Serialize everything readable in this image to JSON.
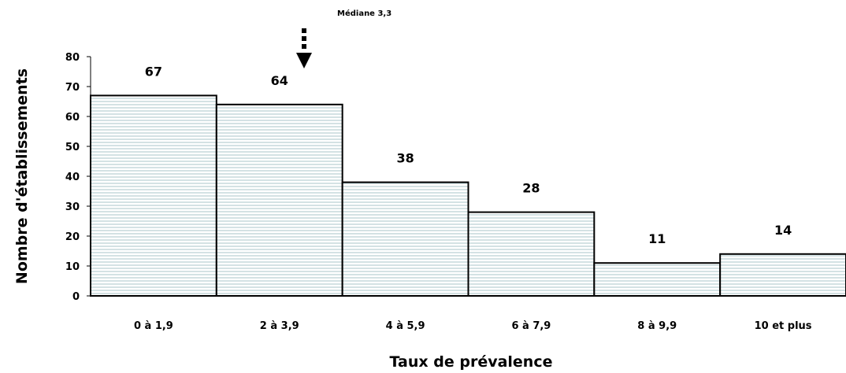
{
  "chart_data": {
    "type": "bar",
    "categories": [
      "0 à 1,9",
      "2 à 3,9",
      "4 à 5,9",
      "6 à 7,9",
      "8 à 9,9",
      "10 et plus"
    ],
    "values": [
      67,
      64,
      38,
      28,
      11,
      14
    ],
    "xlabel": "Taux de prévalence",
    "ylabel": "Nombre d'établissements",
    "ylim": [
      0,
      80
    ],
    "yticks": [
      0,
      10,
      20,
      30,
      40,
      50,
      60,
      70,
      80
    ],
    "grid": false,
    "data_labels": true,
    "annotation": {
      "text": "Médiane 3,3",
      "x_value": 3.3
    },
    "colors": {
      "bar_fill": "#ffffff",
      "bar_stripes": "#a9c4c8",
      "bar_outline": "#000000"
    }
  }
}
